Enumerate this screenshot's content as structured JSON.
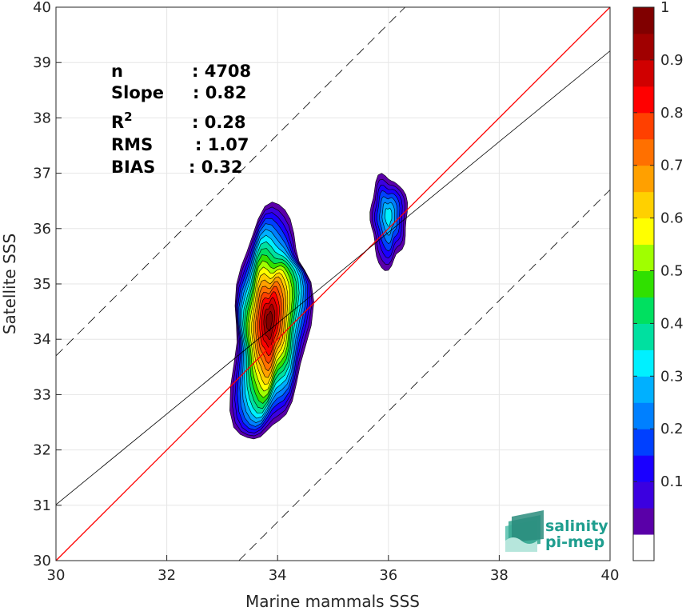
{
  "chart_data": {
    "type": "heatmap",
    "xlabel": "Marine mammals SSS",
    "ylabel": "Satellite SSS",
    "xlim": [
      30,
      40
    ],
    "ylim": [
      30,
      40
    ],
    "xticks": [
      "30",
      "32",
      "34",
      "36",
      "38",
      "40"
    ],
    "yticks": [
      "30",
      "31",
      "32",
      "33",
      "34",
      "35",
      "36",
      "37",
      "38",
      "39",
      "40"
    ],
    "grid": true,
    "stats": [
      {
        "label": "n",
        "value": ": 4708"
      },
      {
        "label": "Slope",
        "value": ": 0.82"
      },
      {
        "label": "R",
        "sup": "2",
        "value": ": 0.28"
      },
      {
        "label": "RMS",
        "value": ": 1.07"
      },
      {
        "label": "BIAS",
        "value": ": 0.32"
      }
    ],
    "lines": [
      {
        "kind": "identity",
        "color": "#ff0000",
        "slope": 1,
        "intercept": 0
      },
      {
        "kind": "regression",
        "color": "#000000",
        "slope": 0.82,
        "intercept": 6.41
      },
      {
        "kind": "offset-upper",
        "color": "#000000",
        "dashed": true,
        "slope": 1,
        "intercept": 3.7
      },
      {
        "kind": "offset-lower",
        "color": "#000000",
        "dashed": true,
        "slope": 1,
        "intercept": -3.3
      }
    ],
    "density_clusters": [
      {
        "center_x": 33.85,
        "center_y": 34.25,
        "x_range": [
          33.4,
          34.75
        ],
        "y_range": [
          32.15,
          36.35
        ],
        "peak_density": 1.0
      },
      {
        "center_x": 36.0,
        "center_y": 36.15,
        "x_range": [
          35.7,
          36.35
        ],
        "y_range": [
          35.25,
          36.9
        ],
        "peak_density": 0.35
      }
    ],
    "colorbar": {
      "range": [
        0,
        1
      ],
      "ticks": [
        "0.1",
        "0.2",
        "0.3",
        "0.4",
        "0.5",
        "0.6",
        "0.7",
        "0.8",
        "0.9",
        "1"
      ],
      "colors": [
        "#5a00a8",
        "#3b00e0",
        "#1a00ff",
        "#0040ff",
        "#0080ff",
        "#00b0ff",
        "#00f0ff",
        "#00e0a0",
        "#00e060",
        "#30e000",
        "#a0ff00",
        "#ffff00",
        "#ffd000",
        "#ffa000",
        "#ff7000",
        "#ff4000",
        "#ff0000",
        "#d00000",
        "#a00000",
        "#800000"
      ]
    }
  },
  "logo": {
    "line1": "salinity",
    "line2": "pi-mep"
  }
}
